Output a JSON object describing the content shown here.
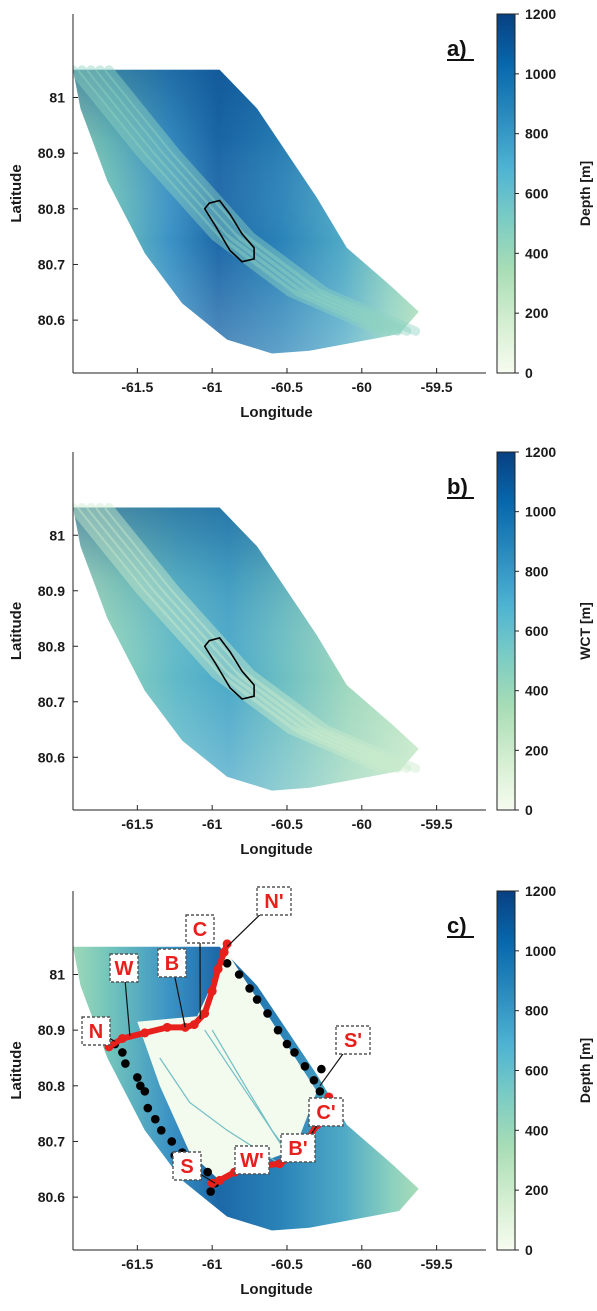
{
  "colors": {
    "ramp": [
      "#f7fcf0",
      "#d3eed0",
      "#a8ddb5",
      "#7bccc4",
      "#4eb3d3",
      "#2b8cbe",
      "#0868ac",
      "#084081"
    ],
    "track": "#e8201c",
    "glacier_outline": "#000000",
    "fjord_interior": "#f3faee",
    "dots": "#000000"
  },
  "chart_data": [
    {
      "panel": "a)",
      "type": "heatmap",
      "xlabel": "Longitude",
      "ylabel": "Latitude",
      "xticks": [
        "-61.5",
        "-61",
        "-60.5",
        "-60",
        "-59.5"
      ],
      "yticks": [
        "81",
        "80.9",
        "80.8",
        "80.7",
        "80.6"
      ],
      "xlim": [
        -61.93,
        -59.17
      ],
      "ylim": [
        80.505,
        81.15
      ],
      "colorbar": {
        "label": "Depth [m]",
        "ticks": [
          "0",
          "200",
          "400",
          "600",
          "800",
          "1000",
          "1200"
        ],
        "range": [
          0,
          1200
        ]
      },
      "outline": "closed contour near lon -61.05 to -60.7, lat 80.71 to 80.81"
    },
    {
      "panel": "b)",
      "type": "heatmap",
      "xlabel": "Longitude",
      "ylabel": "Latitude",
      "xticks": [
        "-61.5",
        "-61",
        "-60.5",
        "-60",
        "-59.5"
      ],
      "yticks": [
        "81",
        "80.9",
        "80.8",
        "80.7",
        "80.6"
      ],
      "xlim": [
        -61.93,
        -59.17
      ],
      "ylim": [
        80.505,
        81.15
      ],
      "colorbar": {
        "label": "WCT [m]",
        "ticks": [
          "0",
          "200",
          "400",
          "600",
          "800",
          "1000",
          "1200"
        ],
        "range": [
          0,
          1200
        ]
      },
      "outline": "closed contour near lon -61.05 to -60.7, lat 80.71 to 80.81"
    },
    {
      "panel": "c)",
      "type": "heatmap",
      "xlabel": "Longitude",
      "ylabel": "Latitude",
      "xticks": [
        "-61.5",
        "-61",
        "-60.5",
        "-60",
        "-59.5"
      ],
      "yticks": [
        "81",
        "80.9",
        "80.8",
        "80.7",
        "80.6"
      ],
      "xlim": [
        -61.93,
        -59.17
      ],
      "ylim": [
        80.505,
        81.15
      ],
      "colorbar": {
        "label": "Depth [m]",
        "ticks": [
          "0",
          "200",
          "400",
          "600",
          "800",
          "1000",
          "1200"
        ],
        "range": [
          0,
          1200
        ]
      },
      "markers": [
        "N",
        "W",
        "B",
        "C",
        "N'",
        "S'",
        "C'",
        "B'",
        "W'",
        "S"
      ]
    }
  ]
}
